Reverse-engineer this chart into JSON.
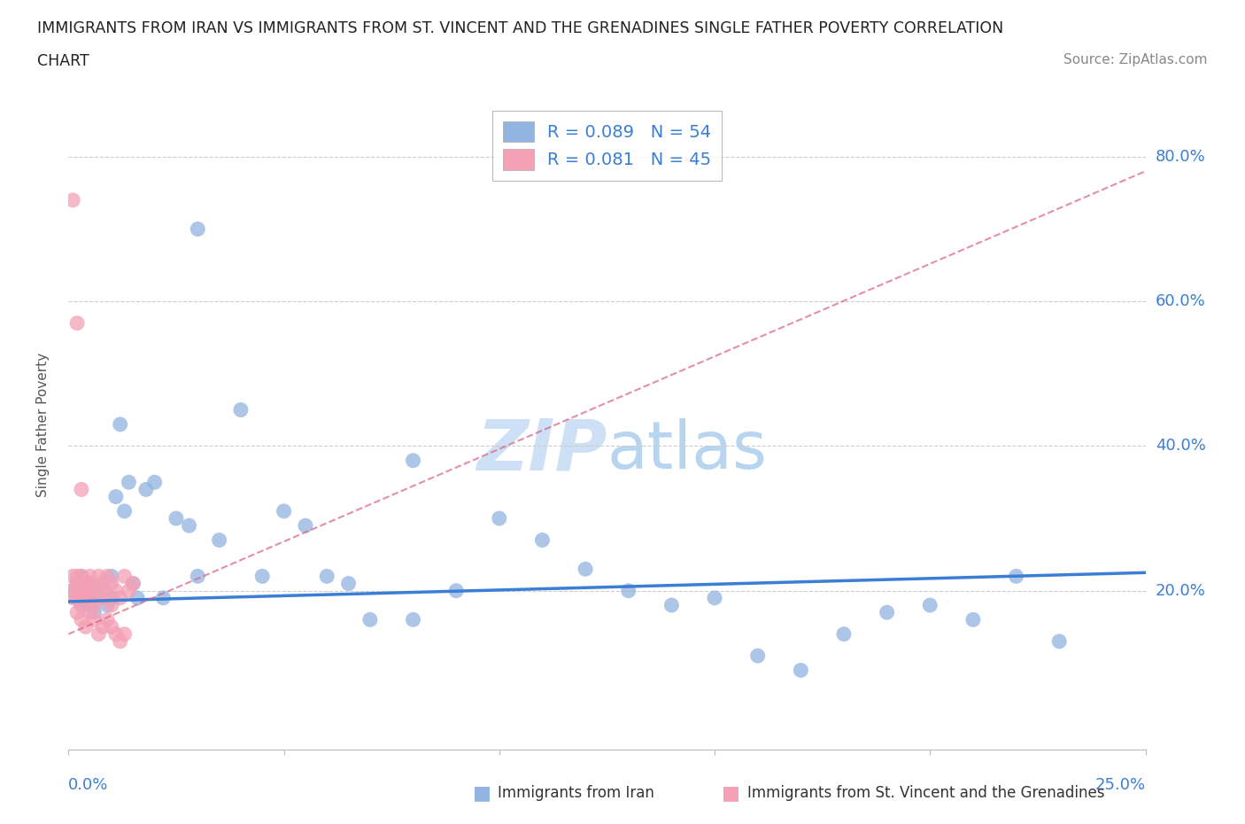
{
  "title_line1": "IMMIGRANTS FROM IRAN VS IMMIGRANTS FROM ST. VINCENT AND THE GRENADINES SINGLE FATHER POVERTY CORRELATION",
  "title_line2": "CHART",
  "source": "Source: ZipAtlas.com",
  "ylabel": "Single Father Poverty",
  "xlim": [
    0.0,
    0.25
  ],
  "ylim": [
    -0.02,
    0.88
  ],
  "ytick_values": [
    0.0,
    0.2,
    0.4,
    0.6,
    0.8
  ],
  "xtick_values": [
    0.0,
    0.05,
    0.1,
    0.15,
    0.2,
    0.25
  ],
  "iran_R": 0.089,
  "iran_N": 54,
  "svg_R": 0.081,
  "svg_N": 45,
  "iran_color": "#92b4e0",
  "svg_color": "#f4a0b5",
  "iran_line_color": "#3a7fd5",
  "svg_line_color": "#d96080",
  "watermark_zip_color": "#cde0f5",
  "watermark_atlas_color": "#b8d5f0",
  "iran_x": [
    0.001,
    0.002,
    0.002,
    0.003,
    0.003,
    0.004,
    0.004,
    0.005,
    0.005,
    0.006,
    0.006,
    0.007,
    0.008,
    0.009,
    0.01,
    0.01,
    0.011,
    0.012,
    0.013,
    0.014,
    0.015,
    0.016,
    0.018,
    0.02,
    0.022,
    0.025,
    0.028,
    0.03,
    0.035,
    0.04,
    0.045,
    0.05,
    0.055,
    0.06,
    0.065,
    0.07,
    0.08,
    0.09,
    0.1,
    0.11,
    0.12,
    0.13,
    0.14,
    0.15,
    0.16,
    0.17,
    0.18,
    0.19,
    0.2,
    0.21,
    0.22,
    0.23,
    0.03,
    0.08
  ],
  "iran_y": [
    0.2,
    0.19,
    0.21,
    0.18,
    0.22,
    0.2,
    0.19,
    0.21,
    0.18,
    0.17,
    0.2,
    0.19,
    0.21,
    0.18,
    0.19,
    0.22,
    0.33,
    0.43,
    0.31,
    0.35,
    0.21,
    0.19,
    0.34,
    0.35,
    0.19,
    0.3,
    0.29,
    0.7,
    0.27,
    0.45,
    0.22,
    0.31,
    0.29,
    0.22,
    0.21,
    0.16,
    0.38,
    0.2,
    0.3,
    0.27,
    0.23,
    0.2,
    0.18,
    0.19,
    0.11,
    0.09,
    0.14,
    0.17,
    0.18,
    0.16,
    0.22,
    0.13,
    0.22,
    0.16
  ],
  "svg_x": [
    0.001,
    0.001,
    0.001,
    0.002,
    0.002,
    0.002,
    0.003,
    0.003,
    0.003,
    0.004,
    0.004,
    0.004,
    0.005,
    0.005,
    0.005,
    0.006,
    0.006,
    0.007,
    0.007,
    0.008,
    0.008,
    0.009,
    0.009,
    0.01,
    0.01,
    0.011,
    0.012,
    0.013,
    0.014,
    0.015,
    0.002,
    0.003,
    0.004,
    0.005,
    0.006,
    0.007,
    0.008,
    0.009,
    0.01,
    0.011,
    0.012,
    0.013,
    0.001,
    0.002,
    0.003
  ],
  "svg_y": [
    0.2,
    0.22,
    0.19,
    0.21,
    0.19,
    0.22,
    0.2,
    0.18,
    0.22,
    0.21,
    0.19,
    0.2,
    0.22,
    0.19,
    0.21,
    0.2,
    0.18,
    0.22,
    0.19,
    0.2,
    0.21,
    0.22,
    0.19,
    0.21,
    0.18,
    0.2,
    0.19,
    0.22,
    0.2,
    0.21,
    0.17,
    0.16,
    0.15,
    0.17,
    0.16,
    0.14,
    0.15,
    0.16,
    0.15,
    0.14,
    0.13,
    0.14,
    0.74,
    0.57,
    0.34
  ],
  "iran_trend_x": [
    0.0,
    0.25
  ],
  "iran_trend_y": [
    0.185,
    0.225
  ],
  "svg_trend_x": [
    0.0,
    0.25
  ],
  "svg_trend_y": [
    0.14,
    0.78
  ]
}
